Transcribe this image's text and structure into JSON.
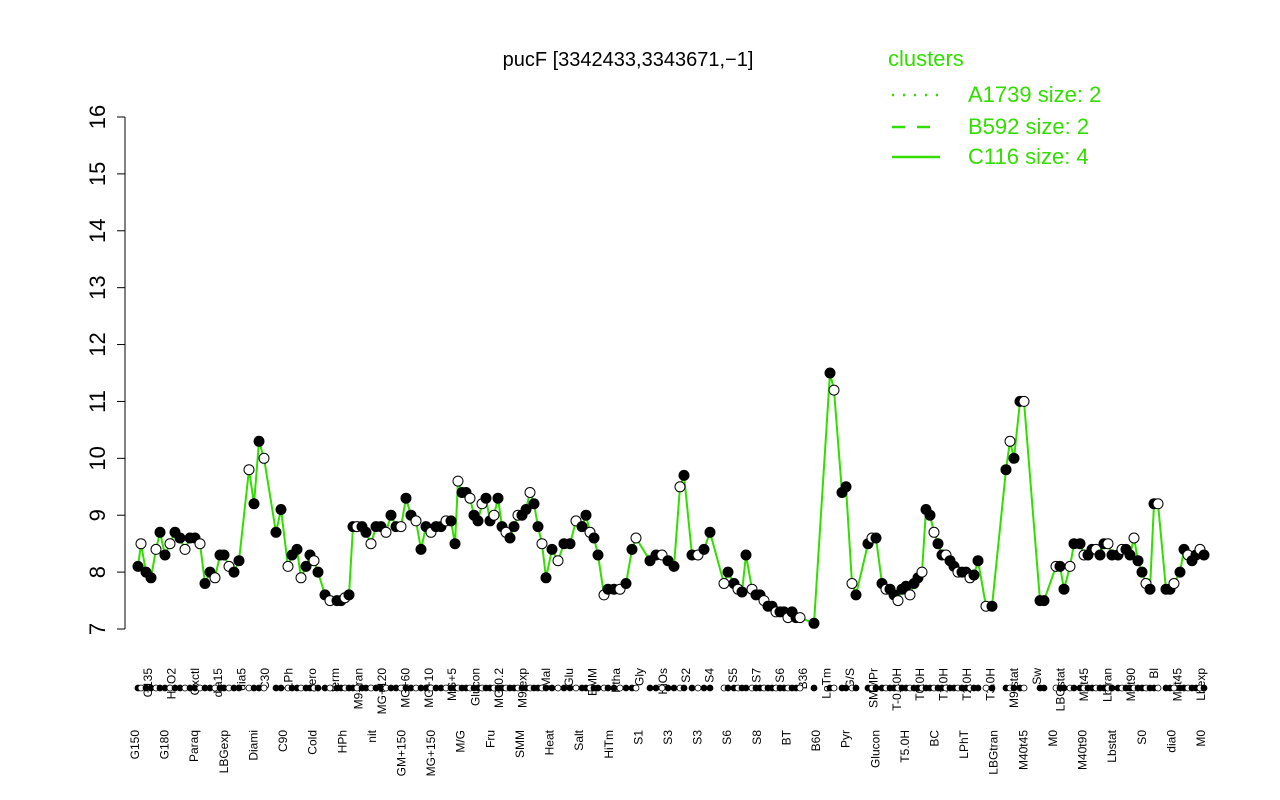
{
  "chart_data": {
    "type": "line",
    "title": "pucF [3342433,3343671,−1]",
    "xlabel": "",
    "ylabel": "",
    "ylim": [
      7,
      16
    ],
    "yticks": [
      7,
      8,
      9,
      10,
      11,
      12,
      13,
      14,
      15,
      16
    ],
    "grid": false,
    "colors": {
      "line": "#33dd00",
      "text": "#000000",
      "open_point": "#ffffff",
      "filled_point": "#000000",
      "legend": "#33dd00"
    },
    "x_labels_top": [
      "G135",
      "H2O2",
      "Oxctl",
      "dia15",
      "dia5",
      "C30",
      "LPh",
      "aero",
      "ferm",
      "M9-tran",
      "MG+120",
      "MG+60",
      "MG+10",
      "MG+5",
      "Glucon",
      "MG-0.2",
      "M9-exp",
      "Mal",
      "Glu",
      "BMM",
      "Etha",
      "Gly",
      "HiOs",
      "S2",
      "S4",
      "S5",
      "S7",
      "S6",
      "B36",
      "LoTm",
      "G/S",
      "SMMPr",
      "T-0.40H",
      "T0.0H",
      "T1.0H",
      "T2.0H",
      "T3.0H",
      "M9-stat",
      "Sw",
      "LBGstat",
      "M0t45",
      "Lbtran",
      "M0t90",
      "Bl",
      "M0t45",
      "Lbexp"
    ],
    "x_labels_bottom": [
      "G150",
      "G180",
      "Paraq",
      "LBGexp",
      "Diami",
      "C90",
      "Cold",
      "HPh",
      "nit",
      "GM+150",
      "MG+150",
      "M/G",
      "Fru",
      "SMM",
      "Heat",
      "Salt",
      "HiTm",
      "S1",
      "S3",
      "S3",
      "S6",
      "S8",
      "BT",
      "B60",
      "Pyr",
      "Glucon",
      "T5.0H",
      "BC",
      "LPhT",
      "LBGtran",
      "M40t45",
      "M0",
      "M40t90",
      "Lbstat",
      "S0",
      "dia0",
      "M0"
    ],
    "series": [
      {
        "name": "",
        "points": [
          [
            138,
            8.1
          ],
          [
            141,
            8.5
          ],
          [
            146,
            8.0
          ],
          [
            151,
            7.9
          ],
          [
            156,
            8.4
          ],
          [
            160,
            8.7
          ],
          [
            165,
            8.3
          ],
          [
            170,
            8.5
          ],
          [
            175,
            8.7
          ],
          [
            180,
            8.6
          ],
          [
            185,
            8.4
          ],
          [
            190,
            8.6
          ],
          [
            195,
            8.6
          ],
          [
            200,
            8.5
          ],
          [
            205,
            7.8
          ],
          [
            210,
            8.0
          ],
          [
            215,
            7.9
          ],
          [
            220,
            8.3
          ],
          [
            224,
            8.3
          ],
          [
            229,
            8.1
          ],
          [
            234,
            8.0
          ],
          [
            239,
            8.2
          ],
          [
            249,
            9.8
          ],
          [
            254,
            9.2
          ],
          [
            259,
            10.3
          ],
          [
            264,
            10.0
          ],
          [
            276,
            8.7
          ],
          [
            281,
            9.1
          ],
          [
            288,
            8.1
          ],
          [
            292,
            8.3
          ],
          [
            297,
            8.4
          ],
          [
            301,
            7.9
          ],
          [
            306,
            8.1
          ],
          [
            310,
            8.3
          ],
          [
            314,
            8.2
          ],
          [
            318,
            8.0
          ],
          [
            325,
            7.6
          ],
          [
            330,
            7.5
          ],
          [
            337,
            7.5
          ],
          [
            341,
            7.5
          ],
          [
            345,
            7.55
          ],
          [
            349,
            7.6
          ],
          [
            353,
            8.8
          ],
          [
            357,
            8.8
          ],
          [
            362,
            8.8
          ],
          [
            366,
            8.7
          ],
          [
            371,
            8.5
          ],
          [
            376,
            8.8
          ],
          [
            381,
            8.8
          ],
          [
            386,
            8.7
          ],
          [
            391,
            9.0
          ],
          [
            396,
            8.8
          ],
          [
            401,
            8.8
          ],
          [
            406,
            9.3
          ],
          [
            411,
            9.0
          ],
          [
            416,
            8.9
          ],
          [
            421,
            8.4
          ],
          [
            426,
            8.8
          ],
          [
            431,
            8.7
          ],
          [
            436,
            8.8
          ],
          [
            441,
            8.8
          ],
          [
            446,
            8.9
          ],
          [
            451,
            8.9
          ],
          [
            455,
            8.5
          ],
          [
            458,
            9.6
          ],
          [
            462,
            9.4
          ],
          [
            466,
            9.4
          ],
          [
            470,
            9.3
          ],
          [
            474,
            9.0
          ],
          [
            478,
            8.9
          ],
          [
            482,
            9.2
          ],
          [
            486,
            9.3
          ],
          [
            490,
            8.9
          ],
          [
            494,
            9.0
          ],
          [
            498,
            9.3
          ],
          [
            502,
            8.8
          ],
          [
            506,
            8.7
          ],
          [
            510,
            8.6
          ],
          [
            514,
            8.8
          ],
          [
            518,
            9.0
          ],
          [
            522,
            9.0
          ],
          [
            526,
            9.1
          ],
          [
            530,
            9.4
          ],
          [
            534,
            9.2
          ],
          [
            538,
            8.8
          ],
          [
            542,
            8.5
          ],
          [
            546,
            7.9
          ],
          [
            552,
            8.4
          ],
          [
            558,
            8.2
          ],
          [
            564,
            8.5
          ],
          [
            570,
            8.5
          ],
          [
            576,
            8.9
          ],
          [
            582,
            8.8
          ],
          [
            586,
            9.0
          ],
          [
            590,
            8.7
          ],
          [
            594,
            8.6
          ],
          [
            598,
            8.3
          ],
          [
            604,
            7.6
          ],
          [
            608,
            7.7
          ],
          [
            614,
            7.7
          ],
          [
            620,
            7.7
          ],
          [
            626,
            7.8
          ],
          [
            632,
            8.4
          ],
          [
            636,
            8.6
          ],
          [
            650,
            8.2
          ],
          [
            656,
            8.3
          ],
          [
            662,
            8.3
          ],
          [
            668,
            8.2
          ],
          [
            674,
            8.1
          ],
          [
            680,
            9.5
          ],
          [
            684,
            9.7
          ],
          [
            692,
            8.3
          ],
          [
            698,
            8.3
          ],
          [
            704,
            8.4
          ],
          [
            710,
            8.7
          ],
          [
            724,
            7.8
          ],
          [
            728,
            8.0
          ],
          [
            734,
            7.8
          ],
          [
            738,
            7.7
          ],
          [
            742,
            7.65
          ],
          [
            746,
            8.3
          ],
          [
            752,
            7.7
          ],
          [
            756,
            7.6
          ],
          [
            760,
            7.6
          ],
          [
            764,
            7.5
          ],
          [
            768,
            7.4
          ],
          [
            772,
            7.4
          ],
          [
            776,
            7.3
          ],
          [
            780,
            7.3
          ],
          [
            784,
            7.3
          ],
          [
            788,
            7.2
          ],
          [
            792,
            7.3
          ],
          [
            796,
            7.2
          ],
          [
            800,
            7.2
          ],
          [
            814,
            7.1
          ],
          [
            830,
            11.5
          ],
          [
            834,
            11.2
          ],
          [
            842,
            9.4
          ],
          [
            846,
            9.5
          ],
          [
            852,
            7.8
          ],
          [
            856,
            7.6
          ],
          [
            868,
            8.5
          ],
          [
            872,
            8.6
          ],
          [
            876,
            8.6
          ],
          [
            882,
            7.8
          ],
          [
            886,
            7.7
          ],
          [
            890,
            7.7
          ],
          [
            894,
            7.6
          ],
          [
            898,
            7.5
          ],
          [
            902,
            7.7
          ],
          [
            906,
            7.75
          ],
          [
            910,
            7.6
          ],
          [
            914,
            7.8
          ],
          [
            918,
            7.9
          ],
          [
            922,
            8.0
          ],
          [
            926,
            9.1
          ],
          [
            930,
            9.0
          ],
          [
            934,
            8.7
          ],
          [
            938,
            8.5
          ],
          [
            942,
            8.3
          ],
          [
            946,
            8.3
          ],
          [
            950,
            8.2
          ],
          [
            954,
            8.1
          ],
          [
            958,
            8.0
          ],
          [
            962,
            8.0
          ],
          [
            966,
            8.0
          ],
          [
            970,
            7.9
          ],
          [
            974,
            7.95
          ],
          [
            978,
            8.2
          ],
          [
            986,
            7.4
          ],
          [
            992,
            7.4
          ],
          [
            1006,
            9.8
          ],
          [
            1010,
            10.3
          ],
          [
            1014,
            10.0
          ],
          [
            1020,
            11.0
          ],
          [
            1024,
            11.0
          ],
          [
            1040,
            7.5
          ],
          [
            1044,
            7.5
          ],
          [
            1056,
            8.1
          ],
          [
            1060,
            8.1
          ],
          [
            1064,
            7.7
          ],
          [
            1070,
            8.1
          ],
          [
            1074,
            8.5
          ],
          [
            1080,
            8.5
          ],
          [
            1084,
            8.3
          ],
          [
            1088,
            8.3
          ],
          [
            1092,
            8.4
          ],
          [
            1096,
            8.4
          ],
          [
            1100,
            8.3
          ],
          [
            1104,
            8.5
          ],
          [
            1108,
            8.5
          ],
          [
            1112,
            8.3
          ],
          [
            1118,
            8.3
          ],
          [
            1122,
            8.4
          ],
          [
            1126,
            8.4
          ],
          [
            1130,
            8.3
          ],
          [
            1134,
            8.6
          ],
          [
            1138,
            8.2
          ],
          [
            1142,
            8.0
          ],
          [
            1146,
            7.8
          ],
          [
            1150,
            7.7
          ],
          [
            1154,
            9.2
          ],
          [
            1158,
            9.2
          ],
          [
            1166,
            7.7
          ],
          [
            1170,
            7.7
          ],
          [
            1174,
            7.8
          ],
          [
            1180,
            8.0
          ],
          [
            1184,
            8.4
          ],
          [
            1188,
            8.3
          ],
          [
            1192,
            8.2
          ],
          [
            1196,
            8.3
          ],
          [
            1200,
            8.4
          ],
          [
            1204,
            8.3
          ]
        ]
      }
    ]
  },
  "legend": {
    "title": "clusters",
    "entries": [
      {
        "label": "A1739 size: 2",
        "style": "dotted"
      },
      {
        "label": "B592 size: 2",
        "style": "dashed"
      },
      {
        "label": "C116 size: 4",
        "style": "solid"
      }
    ]
  }
}
